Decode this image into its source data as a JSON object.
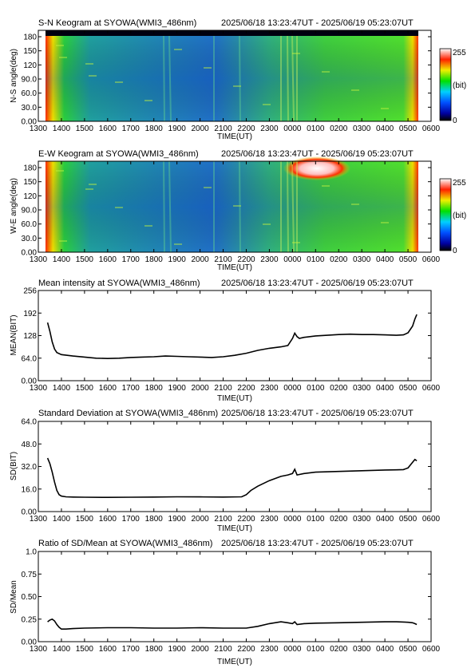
{
  "time_header": "2025/06/18 13:23:47UT - 2025/06/19 05:23:07UT",
  "x_tick_labels": [
    "1300",
    "1400",
    "1500",
    "1600",
    "1700",
    "1800",
    "1900",
    "2000",
    "2100",
    "2200",
    "2300",
    "0000",
    "0100",
    "0200",
    "0300",
    "0400",
    "0500",
    "0600"
  ],
  "xlabel": "TIME(UT)",
  "colorbar": {
    "max_label": "255",
    "unit_label": "(bit)",
    "min_label": "0"
  },
  "chart_data": [
    {
      "type": "heatmap",
      "title": "S-N Keogram at SYOWA(WMI3_486nm)",
      "xlabel": "TIME(UT)",
      "ylabel": "N-S angle(deg)",
      "x_range_hours": [
        13.0,
        30.0
      ],
      "data_range_hours": [
        13.396,
        29.385
      ],
      "ylim": [
        0,
        180
      ],
      "y_ticks": [
        "0.00",
        "30.0",
        "60.0",
        "90.0",
        "120",
        "150",
        "180"
      ],
      "colorbar_range": [
        0,
        255
      ],
      "colorbar_label": "(bit)"
    },
    {
      "type": "heatmap",
      "title": "E-W Keogram at SYOWA(WMI3_486nm)",
      "xlabel": "TIME(UT)",
      "ylabel": "W-E angle(deg)",
      "x_range_hours": [
        13.0,
        30.0
      ],
      "data_range_hours": [
        13.396,
        29.385
      ],
      "ylim": [
        0,
        180
      ],
      "y_ticks": [
        "0.00",
        "30.0",
        "60.0",
        "90.0",
        "120",
        "150",
        "180"
      ],
      "colorbar_range": [
        0,
        255
      ],
      "colorbar_label": "(bit)"
    },
    {
      "type": "line",
      "title": "Mean intensity at SYOWA(WMI3_486nm)",
      "xlabel": "TIME(UT)",
      "ylabel": "MEAN(BIT)",
      "ylim": [
        0,
        256
      ],
      "y_ticks": [
        "0.00",
        "64.0",
        "128",
        "192",
        "256"
      ],
      "series": [
        {
          "x": [
            13.4,
            13.5,
            13.6,
            13.7,
            13.8,
            14.0,
            14.5,
            15.0,
            15.5,
            16.0,
            16.5,
            17.0,
            17.5,
            18.0,
            18.5,
            19.0,
            19.5,
            20.0,
            20.5,
            21.0,
            21.5,
            22.0,
            22.5,
            23.0,
            23.5,
            23.8,
            24.0,
            24.1,
            24.2,
            24.3,
            24.5,
            25.0,
            25.5,
            26.0,
            26.5,
            27.0,
            27.5,
            28.0,
            28.5,
            28.8,
            29.0,
            29.2,
            29.3,
            29.38
          ],
          "y": [
            165,
            140,
            110,
            90,
            80,
            74,
            70,
            67,
            64,
            63,
            64,
            66,
            67,
            68,
            70,
            69,
            68,
            67,
            66,
            68,
            72,
            78,
            86,
            92,
            96,
            100,
            120,
            135,
            125,
            120,
            123,
            127,
            129,
            131,
            132,
            131,
            131,
            130,
            129,
            130,
            136,
            155,
            175,
            188
          ]
        }
      ]
    },
    {
      "type": "line",
      "title": "Standard Deviation at SYOWA(WMI3_486nm)",
      "xlabel": "TIME(UT)",
      "ylabel": "SD(BIT)",
      "ylim": [
        0,
        64
      ],
      "y_ticks": [
        "0.00",
        "16.0",
        "32.0",
        "48.0",
        "64.0"
      ],
      "series": [
        {
          "x": [
            13.4,
            13.5,
            13.6,
            13.7,
            13.8,
            13.9,
            14.0,
            14.2,
            14.5,
            15.0,
            16.0,
            17.0,
            18.0,
            19.0,
            20.0,
            21.0,
            21.8,
            22.0,
            22.2,
            22.5,
            23.0,
            23.5,
            23.8,
            24.0,
            24.1,
            24.2,
            24.5,
            25.0,
            26.0,
            27.0,
            28.0,
            28.5,
            28.8,
            29.0,
            29.2,
            29.3,
            29.38
          ],
          "y": [
            38,
            34,
            28,
            21,
            15,
            12,
            11,
            10.5,
            10.3,
            10.2,
            10.1,
            10.2,
            10.3,
            10.5,
            10.4,
            10.3,
            10.5,
            12,
            15,
            18,
            22,
            25,
            26,
            27,
            30,
            26,
            27,
            28,
            28.5,
            29,
            29.5,
            29.6,
            29.8,
            31,
            35,
            37,
            36
          ]
        }
      ]
    },
    {
      "type": "line",
      "title": "Ratio of SD/Mean at SYOWA(WMI3_486nm)",
      "xlabel": "TIME(UT)",
      "ylabel": "SD/Mean",
      "ylim": [
        0,
        1.0
      ],
      "y_ticks": [
        "0.00",
        "0.25",
        "0.50",
        "0.75",
        "1.0"
      ],
      "series": [
        {
          "x": [
            13.4,
            13.5,
            13.6,
            13.7,
            13.8,
            13.9,
            14.0,
            14.2,
            14.5,
            15.0,
            16.0,
            17.0,
            18.0,
            19.0,
            20.0,
            21.0,
            22.0,
            22.5,
            23.0,
            23.5,
            23.8,
            24.0,
            24.1,
            24.2,
            24.5,
            25.0,
            26.0,
            27.0,
            28.0,
            28.5,
            29.0,
            29.2,
            29.3,
            29.38
          ],
          "y": [
            0.22,
            0.24,
            0.25,
            0.23,
            0.19,
            0.16,
            0.14,
            0.14,
            0.145,
            0.15,
            0.155,
            0.155,
            0.15,
            0.15,
            0.155,
            0.15,
            0.15,
            0.17,
            0.2,
            0.22,
            0.21,
            0.2,
            0.22,
            0.19,
            0.2,
            0.205,
            0.21,
            0.215,
            0.22,
            0.22,
            0.215,
            0.21,
            0.2,
            0.19
          ]
        }
      ]
    }
  ]
}
